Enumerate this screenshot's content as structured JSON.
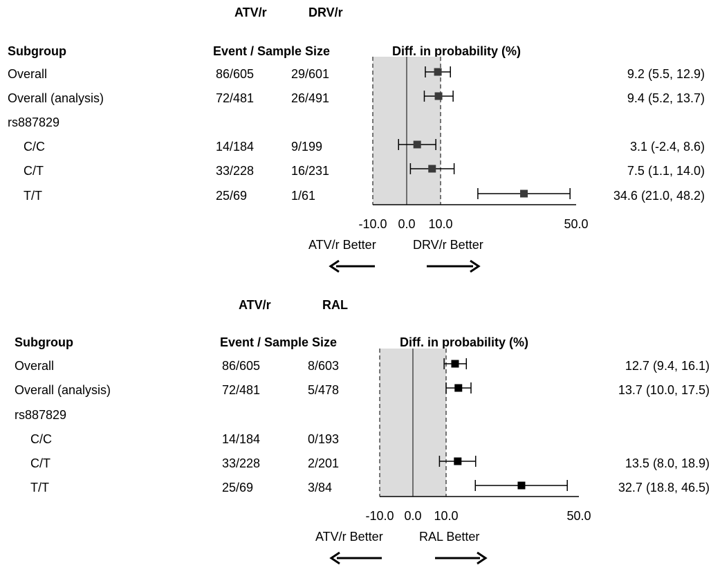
{
  "colors": {
    "shade": "#dcdcdc",
    "marker_top": "#3a3a3a",
    "marker_bottom": "#000000",
    "whisker": "#000000"
  },
  "panels": [
    {
      "group1": "ATV/r",
      "group2": "DRV/r",
      "headers": {
        "subgroup": "Subgroup",
        "events": "Event / Sample Size",
        "diff": "Diff. in probability (%)"
      },
      "rows": [
        {
          "label": "Overall",
          "indent": false,
          "g1": "86/605",
          "g2": "29/601",
          "ci": "9.2 (5.5, 12.9)"
        },
        {
          "label": "Overall (analysis)",
          "indent": false,
          "g1": "72/481",
          "g2": "26/491",
          "ci": "9.4 (5.2, 13.7)"
        },
        {
          "label": "rs887829",
          "indent": false,
          "g1": "",
          "g2": "",
          "ci": ""
        },
        {
          "label": "C/C",
          "indent": true,
          "g1": "14/184",
          "g2": "9/199",
          "ci": "3.1 (-2.4, 8.6)"
        },
        {
          "label": "C/T",
          "indent": true,
          "g1": "33/228",
          "g2": "16/231",
          "ci": "7.5 (1.1, 14.0)"
        },
        {
          "label": "T/T",
          "indent": true,
          "g1": "25/69",
          "g2": "1/61",
          "ci": "34.6 (21.0, 48.2)"
        }
      ],
      "x_ticks": [
        {
          "label": "-10.0",
          "value": -10
        },
        {
          "label": "0.0",
          "value": 0
        },
        {
          "label": "10.0",
          "value": 10
        },
        {
          "label": "50.0",
          "value": 50
        }
      ],
      "left_better": "ATV/r Better",
      "right_better": "DRV/r Better"
    },
    {
      "group1": "ATV/r",
      "group2": "RAL",
      "headers": {
        "subgroup": "Subgroup",
        "events": "Event / Sample Size",
        "diff": "Diff. in probability (%)"
      },
      "rows": [
        {
          "label": "Overall",
          "indent": false,
          "g1": "86/605",
          "g2": "8/603",
          "ci": "12.7 (9.4, 16.1)"
        },
        {
          "label": "Overall (analysis)",
          "indent": false,
          "g1": "72/481",
          "g2": "5/478",
          "ci": "13.7 (10.0, 17.5)"
        },
        {
          "label": "rs887829",
          "indent": false,
          "g1": "",
          "g2": "",
          "ci": ""
        },
        {
          "label": "C/C",
          "indent": true,
          "g1": "14/184",
          "g2": "0/193",
          "ci": ""
        },
        {
          "label": "C/T",
          "indent": true,
          "g1": "33/228",
          "g2": "2/201",
          "ci": "13.5 (8.0, 18.9)"
        },
        {
          "label": "T/T",
          "indent": true,
          "g1": "25/69",
          "g2": "3/84",
          "ci": "32.7 (18.8, 46.5)"
        }
      ],
      "x_ticks": [
        {
          "label": "-10.0",
          "value": -10
        },
        {
          "label": "0.0",
          "value": 0
        },
        {
          "label": "10.0",
          "value": 10
        },
        {
          "label": "50.0",
          "value": 50
        }
      ],
      "left_better": "ATV/r Better",
      "right_better": "RAL Better"
    }
  ],
  "chart_data": [
    {
      "type": "forest",
      "xlabel": "Diff. in probability (%)",
      "xlim": [
        -10,
        50
      ],
      "shaded_region": [
        -10,
        10
      ],
      "reference_lines": [
        -10,
        0,
        10
      ],
      "categories": [
        "Overall",
        "Overall (analysis)",
        "C/C",
        "C/T",
        "T/T"
      ],
      "series": [
        {
          "estimate": [
            9.2,
            9.4,
            3.1,
            7.5,
            34.6
          ],
          "lower": [
            5.5,
            5.2,
            -2.4,
            1.1,
            21.0
          ],
          "upper": [
            12.9,
            13.7,
            8.6,
            14.0,
            48.2
          ]
        }
      ]
    },
    {
      "type": "forest",
      "xlabel": "Diff. in probability (%)",
      "xlim": [
        -10,
        50
      ],
      "shaded_region": [
        -10,
        10
      ],
      "reference_lines": [
        -10,
        0,
        10
      ],
      "categories": [
        "Overall",
        "Overall (analysis)",
        "C/C",
        "C/T",
        "T/T"
      ],
      "series": [
        {
          "estimate": [
            12.7,
            13.7,
            null,
            13.5,
            32.7
          ],
          "lower": [
            9.4,
            10.0,
            null,
            8.0,
            18.8
          ],
          "upper": [
            16.1,
            17.5,
            null,
            18.9,
            46.5
          ]
        }
      ]
    }
  ]
}
